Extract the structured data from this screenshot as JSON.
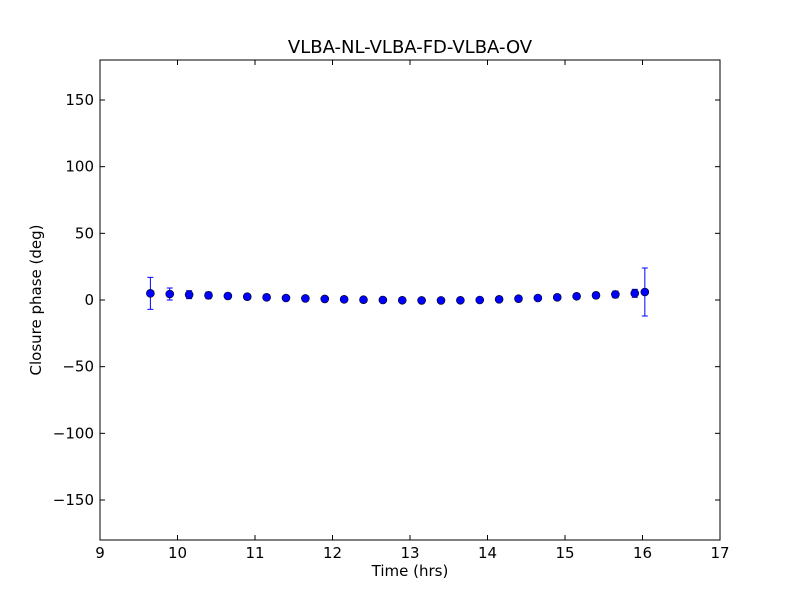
{
  "chart_data": {
    "type": "scatter",
    "title": "VLBA-NL-VLBA-FD-VLBA-OV",
    "xlabel": "Time (hrs)",
    "ylabel": "Closure phase (deg)",
    "xlim": [
      9,
      17
    ],
    "ylim": [
      -180,
      180
    ],
    "xticks": [
      9,
      10,
      11,
      12,
      13,
      14,
      15,
      16,
      17
    ],
    "xtick_labels": [
      "9",
      "10",
      "11",
      "12",
      "13",
      "14",
      "15",
      "16",
      "17"
    ],
    "yticks": [
      -150,
      -100,
      -50,
      0,
      50,
      100,
      150
    ],
    "ytick_labels": [
      "−150",
      "−100",
      "−50",
      "0",
      "50",
      "100",
      "150"
    ],
    "grid": false,
    "marker_color": "#0000ff",
    "series": [
      {
        "x": [
          9.65,
          9.9,
          10.15,
          10.4,
          10.65,
          10.9,
          11.15,
          11.4,
          11.65,
          11.9,
          12.15,
          12.4,
          12.65,
          12.9,
          13.15,
          13.4,
          13.65,
          13.9,
          14.15,
          14.4,
          14.65,
          14.9,
          15.15,
          15.4,
          15.65,
          15.9,
          16.03
        ],
        "y": [
          5,
          4.5,
          4,
          3.5,
          3,
          2.5,
          2,
          1.5,
          1.2,
          0.8,
          0.5,
          0.2,
          0,
          -0.2,
          -0.3,
          -0.3,
          -0.2,
          0,
          0.5,
          1,
          1.5,
          2,
          2.8,
          3.5,
          4.2,
          5,
          6
        ],
        "yerr": [
          12,
          4.5,
          3,
          2.5,
          2.2,
          2,
          2,
          1.8,
          1.8,
          1.8,
          1.8,
          1.8,
          1.8,
          1.8,
          1.8,
          1.8,
          1.8,
          1.8,
          1.8,
          1.8,
          1.8,
          2,
          2,
          2.2,
          2.5,
          3,
          18
        ]
      }
    ]
  }
}
